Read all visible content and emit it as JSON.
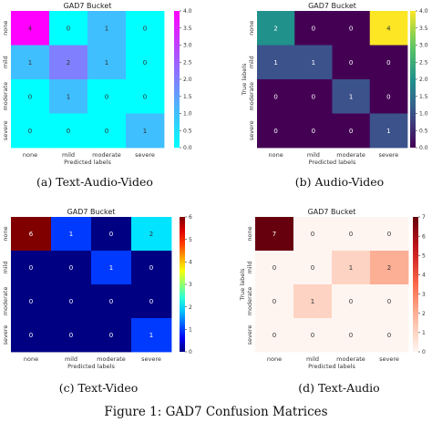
{
  "figure": {
    "caption": "Figure 1: GAD7 Confusion Matrices"
  },
  "chart_data": [
    {
      "type": "heatmap",
      "title": "GAD7 Bucket",
      "subcaption": "(a) Text-Audio-Video",
      "xlabel": "Predicted labels",
      "ylabel": "True labels",
      "categories": [
        "none",
        "mild",
        "moderate",
        "severe"
      ],
      "matrix": [
        [
          4,
          0,
          1,
          0
        ],
        [
          1,
          2,
          1,
          0
        ],
        [
          0,
          1,
          0,
          0
        ],
        [
          0,
          0,
          0,
          1
        ]
      ],
      "colorbar": {
        "min": 0,
        "max": 4,
        "ticks": [
          "0.0",
          "0.5",
          "1.0",
          "1.5",
          "2.0",
          "2.5",
          "3.0",
          "3.5",
          "4.0"
        ]
      },
      "colormap": "cool"
    },
    {
      "type": "heatmap",
      "title": "GAD7 Bucket",
      "subcaption": "(b) Audio-Video",
      "xlabel": "Predicted labels",
      "ylabel": "True labels",
      "categories": [
        "none",
        "mild",
        "moderate",
        "severe"
      ],
      "matrix": [
        [
          2,
          0,
          0,
          4
        ],
        [
          1,
          1,
          0,
          0
        ],
        [
          0,
          0,
          1,
          0
        ],
        [
          0,
          0,
          0,
          1
        ]
      ],
      "colorbar": {
        "min": 0,
        "max": 4,
        "ticks": [
          "0.0",
          "0.5",
          "1.0",
          "1.5",
          "2.0",
          "2.5",
          "3.0",
          "3.5",
          "4.0"
        ]
      },
      "colormap": "viridis"
    },
    {
      "type": "heatmap",
      "title": "GAD7 Bucket",
      "subcaption": "(c) Text-Video",
      "xlabel": "Predicted labels",
      "ylabel": "True labels",
      "categories": [
        "none",
        "mild",
        "moderate",
        "severe"
      ],
      "matrix": [
        [
          6,
          1,
          0,
          2
        ],
        [
          0,
          0,
          1,
          0
        ],
        [
          0,
          0,
          0,
          0
        ],
        [
          0,
          0,
          0,
          1
        ]
      ],
      "colorbar": {
        "min": 0,
        "max": 6,
        "ticks": [
          "0",
          "1",
          "2",
          "3",
          "4",
          "5",
          "6"
        ]
      },
      "colormap": "jet"
    },
    {
      "type": "heatmap",
      "title": "GAD7 Bucket",
      "subcaption": "(d) Text-Audio",
      "xlabel": "Predicted labels",
      "ylabel": "True labels",
      "categories": [
        "none",
        "mild",
        "moderate",
        "severe"
      ],
      "matrix": [
        [
          7,
          0,
          0,
          0
        ],
        [
          0,
          0,
          1,
          2
        ],
        [
          0,
          1,
          0,
          0
        ],
        [
          0,
          0,
          0,
          0
        ]
      ],
      "colorbar": {
        "min": 0,
        "max": 7,
        "ticks": [
          "0",
          "1",
          "2",
          "3",
          "4",
          "5",
          "6",
          "7"
        ]
      },
      "colormap": "reds"
    }
  ]
}
